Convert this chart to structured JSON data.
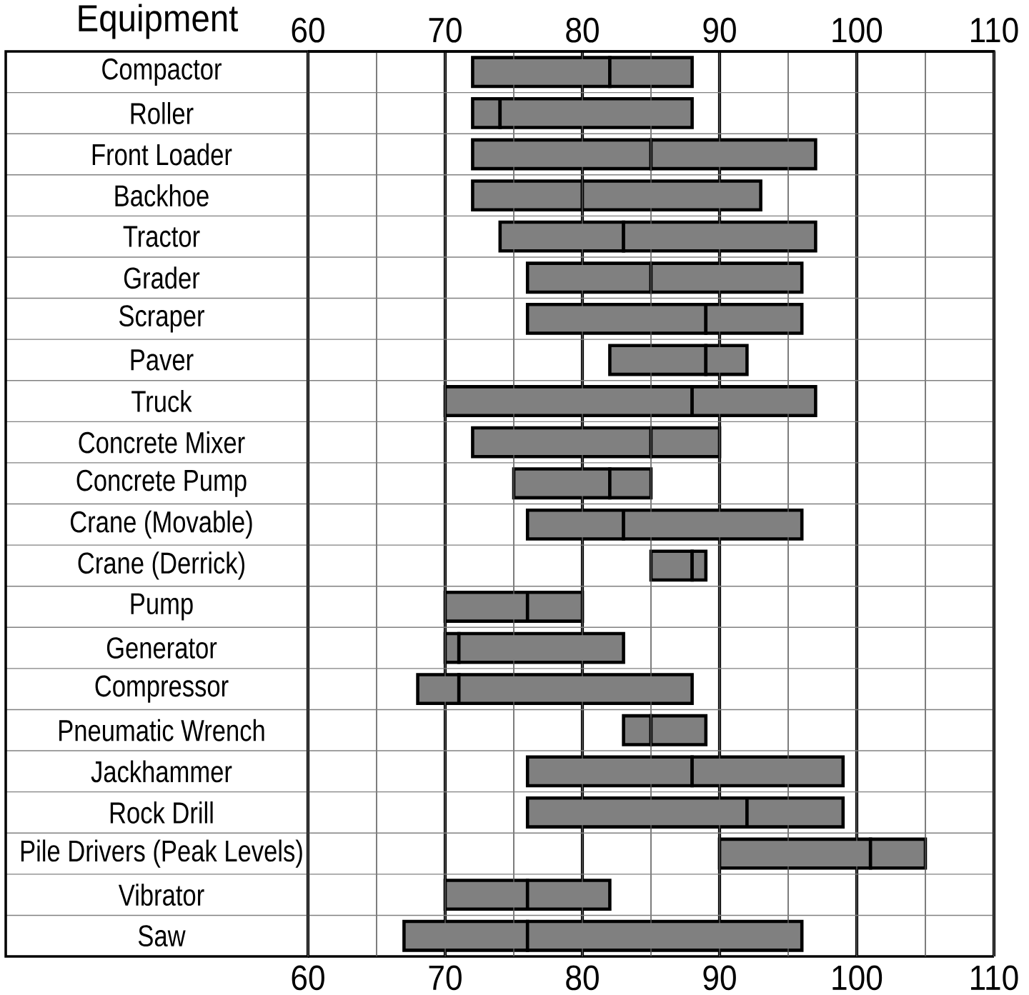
{
  "chart_data": {
    "type": "bar",
    "orientation": "horizontal",
    "ylabel": "Equipment",
    "grid": true,
    "categories": [
      "Compactor",
      "Roller",
      "Front Loader",
      "Backhoe",
      "Tractor",
      "Grader",
      "Scraper",
      "Paver",
      "Truck",
      "Concrete Mixer",
      "Concrete Pump",
      "Crane (Movable)",
      "Crane (Derrick)",
      "Pump",
      "Generator",
      "Compressor",
      "Pneumatic Wrench",
      "Jackhammer",
      "Rock Drill",
      "Pile Drivers (Peak Levels)",
      "Vibrator",
      "Saw"
    ],
    "series": [
      {
        "color": "#808080",
        "base": [
          72,
          72,
          72,
          72,
          74,
          76,
          76,
          82,
          70,
          72,
          75,
          76,
          85,
          70,
          70,
          68,
          83,
          76,
          76,
          90,
          70,
          67
        ],
        "values": [
          10,
          2,
          13,
          8,
          9,
          9,
          13,
          7,
          18,
          13,
          7,
          7,
          3,
          6,
          1,
          3,
          2,
          12,
          16,
          11,
          6,
          9
        ]
      },
      {
        "color": "#808080",
        "base": [
          82,
          74,
          85,
          80,
          83,
          85,
          89,
          89,
          88,
          85,
          82,
          83,
          88,
          76,
          71,
          71,
          85,
          88,
          92,
          101,
          76,
          76
        ],
        "values": [
          6,
          14,
          12,
          13,
          14,
          11,
          7,
          3,
          9,
          5,
          3,
          13,
          1,
          4,
          12,
          17,
          4,
          11,
          7,
          4,
          6,
          20
        ]
      }
    ],
    "xlim": [
      60,
      110
    ],
    "xticks": [
      60,
      {
        "value": 65,
        "label": null
      },
      70,
      {
        "value": 75,
        "label": null
      },
      80,
      {
        "value": 85,
        "label": null
      },
      90,
      {
        "value": 95,
        "label": null
      },
      100,
      {
        "value": 105,
        "label": null
      },
      110
    ],
    "x2lim": [
      60,
      110
    ],
    "x2ticks": [
      60,
      {
        "value": 65,
        "label": null
      },
      70,
      {
        "value": 75,
        "label": null
      },
      80,
      {
        "value": 85,
        "label": null
      },
      90,
      {
        "value": 95,
        "label": null
      },
      100,
      {
        "value": 105,
        "label": null
      },
      110
    ]
  }
}
